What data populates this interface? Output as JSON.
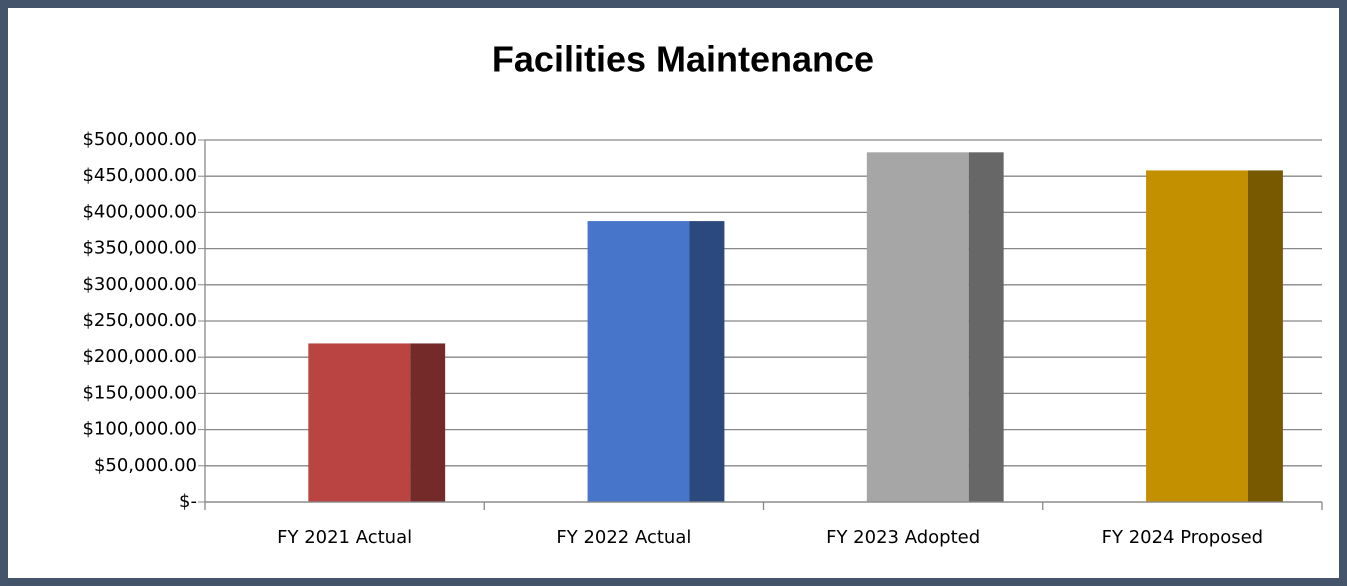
{
  "chart_data": {
    "type": "bar",
    "title": "Facilities Maintenance",
    "categories": [
      "FY 2021 Actual",
      "FY 2022 Actual",
      "FY 2023 Adopted",
      "FY 2024 Proposed"
    ],
    "values": [
      219000,
      388000,
      483000,
      458000
    ],
    "colors": [
      "#b94441",
      "#4775c9",
      "#a6a6a6",
      "#c39000"
    ],
    "ylim": [
      0,
      500000
    ],
    "yticks": [
      {
        "value": 0,
        "label": "$-"
      },
      {
        "value": 50000,
        "label": "$50,000.00"
      },
      {
        "value": 100000,
        "label": "$100,000.00"
      },
      {
        "value": 150000,
        "label": "$150,000.00"
      },
      {
        "value": 200000,
        "label": "$200,000.00"
      },
      {
        "value": 250000,
        "label": "$250,000.00"
      },
      {
        "value": 300000,
        "label": "$300,000.00"
      },
      {
        "value": 350000,
        "label": "$350,000.00"
      },
      {
        "value": 400000,
        "label": "$400,000.00"
      },
      {
        "value": 450000,
        "label": "$450,000.00"
      },
      {
        "value": 500000,
        "label": "$500,000.00"
      }
    ],
    "grid": true
  }
}
